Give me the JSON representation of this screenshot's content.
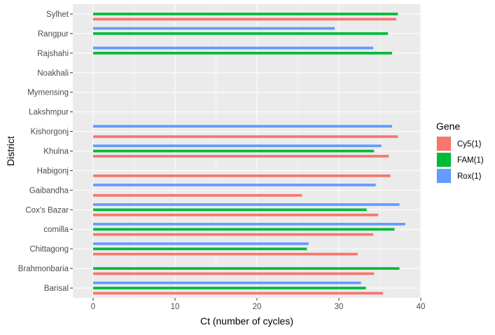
{
  "chart_data": {
    "type": "bar",
    "orientation": "horizontal",
    "xlabel": "Ct (number of cycles)",
    "ylabel": "District",
    "xlim": [
      -2.8,
      40
    ],
    "xticks": [
      0,
      10,
      20,
      30,
      40
    ],
    "grid": true,
    "legend": {
      "title": "Gene",
      "placement": "right",
      "entries": [
        "Cy5(1)",
        "FAM(1)",
        "Rox(1)"
      ]
    },
    "categories": [
      "Barisal",
      "Brahmonbaria",
      "Chittagong",
      "comilla",
      "Cox's Bazar",
      "Gaibandha",
      "Habigonj",
      "Khulna",
      "Kishorgonj",
      "Lakshmpur",
      "Mymensing",
      "Noakhali",
      "Rajshahi",
      "Rangpur",
      "Sylhet"
    ],
    "series": [
      {
        "name": "Cy5(1)",
        "color": "#F8766D",
        "values": [
          35.4,
          34.3,
          32.3,
          34.2,
          34.8,
          25.5,
          36.3,
          36.1,
          37.2,
          null,
          null,
          null,
          null,
          null,
          37.0
        ]
      },
      {
        "name": "FAM(1)",
        "color": "#00BA38",
        "values": [
          33.3,
          37.4,
          26.1,
          36.8,
          33.4,
          null,
          null,
          34.3,
          null,
          null,
          null,
          null,
          36.5,
          36.0,
          37.2
        ]
      },
      {
        "name": "Rox(1)",
        "color": "#619CFF",
        "values": [
          32.7,
          null,
          26.3,
          38.1,
          37.4,
          34.5,
          null,
          35.2,
          36.5,
          null,
          null,
          null,
          34.2,
          29.5,
          null
        ]
      }
    ]
  }
}
